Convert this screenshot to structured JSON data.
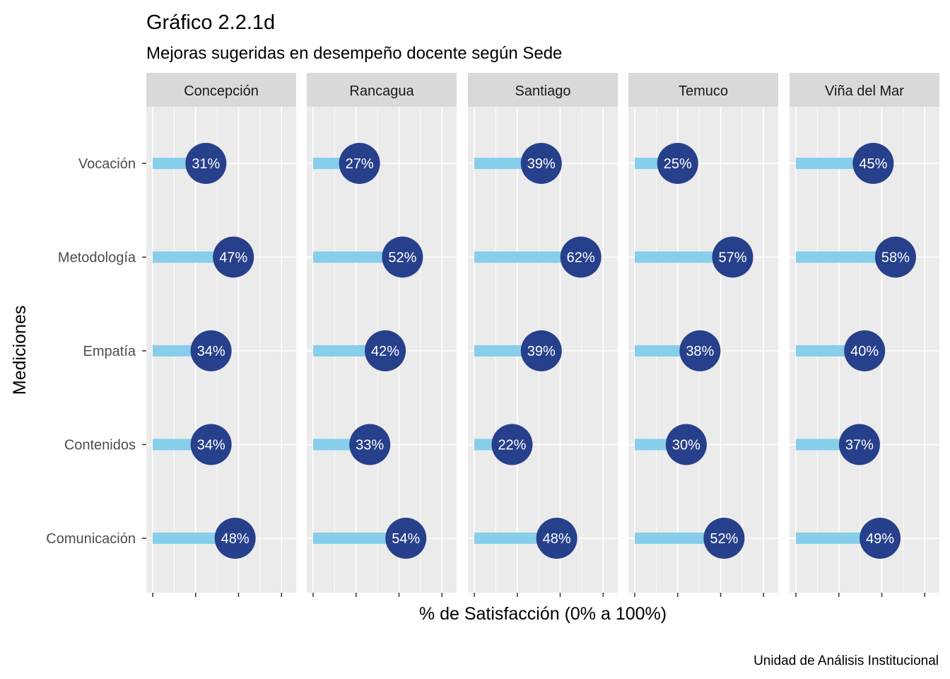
{
  "chart_data": {
    "type": "lollipop",
    "title": "Gráfico 2.2.1d",
    "subtitle": "Mejoras sugeridas en desempeño docente según Sede",
    "xlabel": "% de Satisfacción (0% a 100%)",
    "ylabel": "Mediciones",
    "caption": "Unidad de Análisis Institucional",
    "xlim": [
      0,
      1
    ],
    "x_tick_values": [
      0,
      0.25,
      0.5,
      0.75
    ],
    "categories": [
      "Vocación",
      "Metodología",
      "Empatía",
      "Contenidos",
      "Comunicación"
    ],
    "facets": [
      {
        "name": "Concepción",
        "values": [
          0.31,
          0.47,
          0.34,
          0.34,
          0.48
        ],
        "labels": [
          "31%",
          "47%",
          "34%",
          "34%",
          "48%"
        ]
      },
      {
        "name": "Rancagua",
        "values": [
          0.27,
          0.52,
          0.42,
          0.33,
          0.54
        ],
        "labels": [
          "27%",
          "52%",
          "42%",
          "33%",
          "54%"
        ]
      },
      {
        "name": "Santiago",
        "values": [
          0.39,
          0.62,
          0.39,
          0.22,
          0.48
        ],
        "labels": [
          "39%",
          "62%",
          "39%",
          "22%",
          "48%"
        ]
      },
      {
        "name": "Temuco",
        "values": [
          0.25,
          0.57,
          0.38,
          0.3,
          0.52
        ],
        "labels": [
          "25%",
          "57%",
          "38%",
          "30%",
          "52%"
        ]
      },
      {
        "name": "Viña del Mar",
        "values": [
          0.45,
          0.58,
          0.4,
          0.37,
          0.49
        ],
        "labels": [
          "45%",
          "58%",
          "40%",
          "37%",
          "49%"
        ]
      }
    ],
    "grid": true,
    "legend": "none",
    "colors": {
      "segment": "#87ceeb",
      "point": "#27408b",
      "label": "#ffffff",
      "panel_background": "#ebebeb",
      "strip_background": "#d9d9d9",
      "gridline": "#ffffff"
    }
  }
}
